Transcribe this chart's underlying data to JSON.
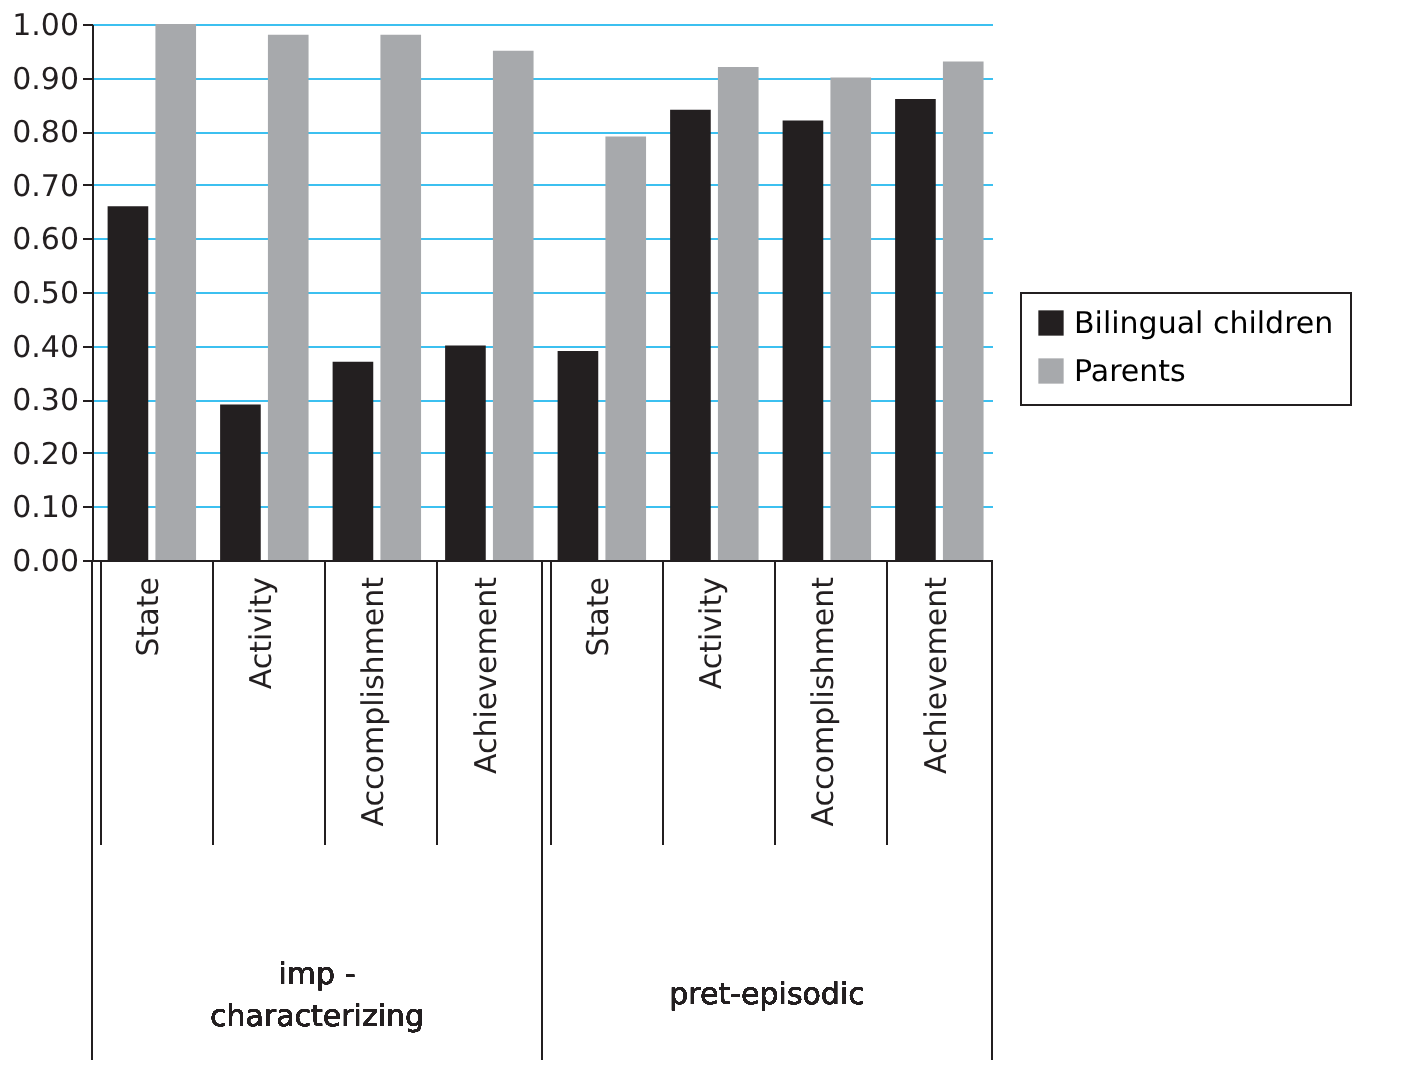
{
  "chart_data": {
    "type": "bar",
    "categories": [
      "State",
      "Activity",
      "Accomplishment",
      "Achievement",
      "State",
      "Activity",
      "Accomplishment",
      "Achievement"
    ],
    "series": [
      {
        "name": "Bilingual children",
        "color": "#231f20",
        "values": [
          0.66,
          0.29,
          0.37,
          0.4,
          0.39,
          0.84,
          0.82,
          0.86
        ]
      },
      {
        "name": "Parents",
        "color": "#a7a9ac",
        "values": [
          1.0,
          0.98,
          0.98,
          0.95,
          0.79,
          0.92,
          0.9,
          0.93
        ]
      }
    ],
    "annotations": [
      "imp - characterizing",
      "pret-episodic"
    ],
    "ylim": [
      0,
      1
    ],
    "yticks": [
      {
        "value": 0,
        "label": "0.00"
      },
      {
        "value": 0.1,
        "label": "0.10"
      },
      {
        "value": 0.2,
        "label": "0.20"
      },
      {
        "value": 0.3,
        "label": "0.30"
      },
      {
        "value": 0.4,
        "label": "0.40"
      },
      {
        "value": 0.5,
        "label": "0.50"
      },
      {
        "value": 0.6,
        "label": "0.60"
      },
      {
        "value": 0.7,
        "label": "0.70"
      },
      {
        "value": 0.8,
        "label": "0.80"
      },
      {
        "value": 0.9,
        "label": "0.90"
      },
      {
        "value": 1.0,
        "label": "1.00"
      }
    ],
    "grid": "y",
    "legend": "right"
  }
}
